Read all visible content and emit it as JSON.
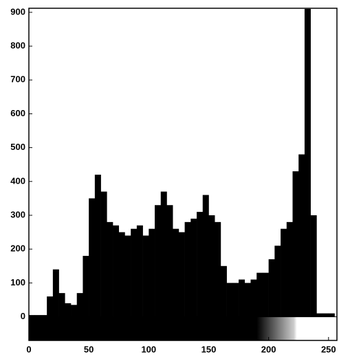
{
  "chart_data": {
    "type": "histogram",
    "bins": [
      0,
      5,
      10,
      15,
      20,
      25,
      30,
      35,
      40,
      45,
      50,
      55,
      60,
      65,
      70,
      75,
      80,
      85,
      90,
      95,
      100,
      105,
      110,
      115,
      120,
      125,
      130,
      135,
      140,
      145,
      150,
      155,
      160,
      165,
      170,
      175,
      180,
      185,
      190,
      195,
      200,
      205,
      210,
      215,
      220,
      225,
      230,
      235,
      240,
      245,
      250,
      255
    ],
    "counts": [
      5,
      5,
      5,
      60,
      140,
      70,
      40,
      35,
      70,
      180,
      350,
      420,
      370,
      280,
      270,
      250,
      240,
      260,
      270,
      240,
      260,
      330,
      370,
      330,
      260,
      250,
      280,
      290,
      310,
      360,
      300,
      280,
      150,
      100,
      100,
      110,
      100,
      110,
      130,
      130,
      170,
      210,
      260,
      280,
      430,
      480,
      910,
      300,
      10,
      10,
      10
    ],
    "color": "#000000",
    "xlim": [
      0,
      257
    ],
    "ylim": [
      -70,
      912
    ],
    "xticks": [
      0,
      50,
      100,
      150,
      200,
      250
    ],
    "yticks": [
      0,
      100,
      200,
      300,
      400,
      500,
      600,
      700,
      800,
      900
    ]
  }
}
